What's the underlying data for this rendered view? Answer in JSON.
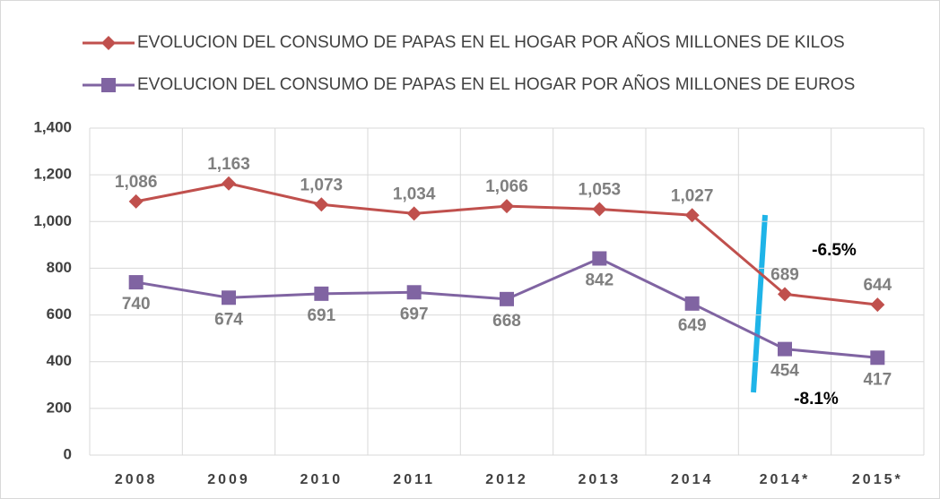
{
  "chart_data": {
    "type": "line",
    "categories": [
      "2008",
      "2009",
      "2010",
      "2011",
      "2012",
      "2013",
      "2014",
      "2014*",
      "2015*"
    ],
    "series": [
      {
        "name": "EVOLUCION DEL CONSUMO DE PAPAS EN EL HOGAR POR AÑOS MILLONES DE KILOS",
        "color": "#c0504d",
        "marker": "diamond",
        "values": [
          1086,
          1163,
          1073,
          1034,
          1066,
          1053,
          1027,
          689,
          644
        ],
        "value_labels": [
          "1,086",
          "1,163",
          "1,073",
          "1,034",
          "1,066",
          "1,053",
          "1,027",
          "689",
          "644"
        ]
      },
      {
        "name": "EVOLUCION DEL CONSUMO DE PAPAS EN EL HOGAR POR AÑOS MILLONES DE EUROS",
        "color": "#8064a2",
        "marker": "square",
        "values": [
          740,
          674,
          691,
          697,
          668,
          842,
          649,
          454,
          417
        ]
      }
    ],
    "ylim": [
      0,
      1400
    ],
    "yticks": [
      0,
      200,
      400,
      600,
      800,
      {
        "value": 1000,
        "label": "1,000"
      },
      {
        "value": 1200,
        "label": "1,200"
      },
      {
        "value": 1400,
        "label": "1,400"
      }
    ],
    "grid": true,
    "annotations": [
      "-6.5%",
      "-8.1%"
    ]
  }
}
